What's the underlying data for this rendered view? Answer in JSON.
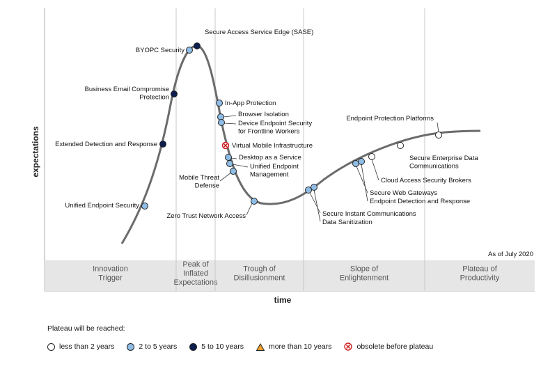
{
  "chart_data": {
    "type": "hype-cycle",
    "ylabel": "expectations",
    "xlabel": "time",
    "note": "As of July 2020",
    "phases": [
      "Innovation\nTrigger",
      "Peak of\nInflated\nExpectations",
      "Trough of\nDisillusionment",
      "Slope of\nEnlightenment",
      "Plateau of\nProductivity"
    ],
    "categories": {
      "lt2": {
        "label": "less than 2 years",
        "color": "#ffffff"
      },
      "2to5": {
        "label": "2 to 5 years",
        "color": "#8fbde6"
      },
      "5to10": {
        "label": "5 to 10 years",
        "color": "#0b1e4d"
      },
      "gt10": {
        "label": "more than 10 years",
        "color": "#f0a030"
      },
      "obs": {
        "label": "obsolete before plateau",
        "color": "#cc2222"
      }
    },
    "technologies": [
      {
        "name": "Unified Endpoint Security",
        "category": "2to5"
      },
      {
        "name": "Extended Detection and Response",
        "category": "5to10"
      },
      {
        "name": "Business Email Compromise\nProtection",
        "category": "5to10"
      },
      {
        "name": "BYOPC Security",
        "category": "2to5"
      },
      {
        "name": "Secure Access Service Edge (SASE)",
        "category": "5to10"
      },
      {
        "name": "In-App Protection",
        "category": "2to5"
      },
      {
        "name": "Browser Isolation",
        "category": "2to5"
      },
      {
        "name": "Device Endpoint Security\nfor Frontline Workers",
        "category": "2to5"
      },
      {
        "name": "Virtual Mobile Infrastructure",
        "category": "obs"
      },
      {
        "name": "Desktop as a Service",
        "category": "2to5"
      },
      {
        "name": "Unified Endpoint\nManagement",
        "category": "2to5"
      },
      {
        "name": "Mobile Threat\nDefense",
        "category": "2to5"
      },
      {
        "name": "Zero Trust Network Access",
        "category": "2to5"
      },
      {
        "name": "Secure Instant Communications",
        "category": "2to5"
      },
      {
        "name": "Data Sanitization",
        "category": "2to5"
      },
      {
        "name": "Secure Web Gateways",
        "category": "2to5"
      },
      {
        "name": "Endpoint Detection and Response",
        "category": "2to5"
      },
      {
        "name": "Cloud Access Security Brokers",
        "category": "lt2"
      },
      {
        "name": "Secure Enterprise Data\nCommunications",
        "category": "lt2"
      },
      {
        "name": "Endpoint Protection Platforms",
        "category": "lt2"
      }
    ]
  },
  "legend": {
    "title": "Plateau will be reached:",
    "items": [
      "less than 2 years",
      "2 to 5 years",
      "5 to 10 years",
      "more than 10 years",
      "obsolete before plateau"
    ]
  }
}
